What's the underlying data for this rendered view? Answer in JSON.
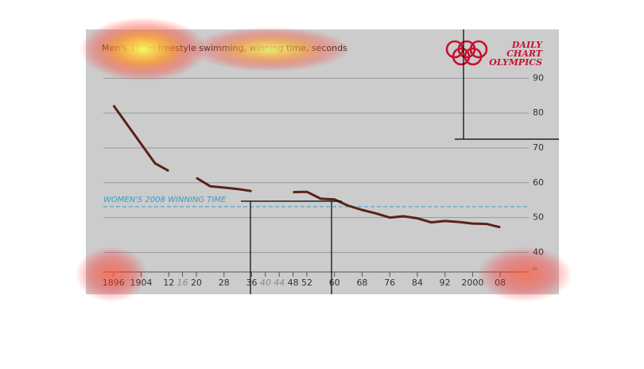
{
  "chart_data": {
    "type": "line",
    "title": "Men's 100m freestyle swimming, winning time, seconds",
    "logo": {
      "lines": [
        "DAILY",
        "CHART",
        "OLYMPICS"
      ],
      "color": "#c8102e"
    },
    "x": [
      1896,
      1908,
      1912,
      1916,
      1920,
      1924,
      1928,
      1932,
      1936,
      1940,
      1948,
      1952,
      1956,
      1960,
      1964,
      1968,
      1972,
      1976,
      1980,
      1984,
      1988,
      1992,
      1996,
      2000,
      2004,
      2008
    ],
    "series": [
      {
        "name": "Men's 100m freestyle",
        "color": "#5a2318",
        "values": [
          82.2,
          65.6,
          63.4,
          null,
          61.4,
          59.0,
          58.6,
          58.2,
          57.6,
          null,
          57.3,
          57.4,
          55.4,
          55.2,
          53.4,
          52.2,
          51.22,
          49.99,
          50.4,
          49.8,
          48.63,
          49.02,
          48.74,
          48.3,
          48.17,
          47.21
        ]
      }
    ],
    "annotation": {
      "text": "WOMEN'S 2008 WINNING TIME",
      "value": 53.12,
      "color": "#3a9cc9"
    },
    "xlim": [
      1888,
      2025
    ],
    "xticks": [
      {
        "value": 1896,
        "label": "1896"
      },
      {
        "value": 1904,
        "label": "1904"
      },
      {
        "value": 1912,
        "label": "12"
      },
      {
        "value": 1916,
        "label": "16",
        "color": "#8a8a8a"
      },
      {
        "value": 1920,
        "label": "20"
      },
      {
        "value": 1928,
        "label": "28"
      },
      {
        "value": 1936,
        "label": "36"
      },
      {
        "value": 1940,
        "label": "40",
        "color": "#8a8a8a"
      },
      {
        "value": 1944,
        "label": "44",
        "color": "#8a8a8a"
      },
      {
        "value": 1948,
        "label": "48"
      },
      {
        "value": 1952,
        "label": "52"
      },
      {
        "value": 1960,
        "label": "60"
      },
      {
        "value": 1968,
        "label": "68"
      },
      {
        "value": 1976,
        "label": "76"
      },
      {
        "value": 1984,
        "label": "84"
      },
      {
        "value": 1992,
        "label": "92"
      },
      {
        "value": 2000,
        "label": "2000"
      },
      {
        "value": 2008,
        "label": "08"
      }
    ],
    "ylim": [
      28,
      104
    ],
    "yticks": [
      40,
      50,
      60,
      70,
      80,
      90
    ],
    "grid": true
  }
}
